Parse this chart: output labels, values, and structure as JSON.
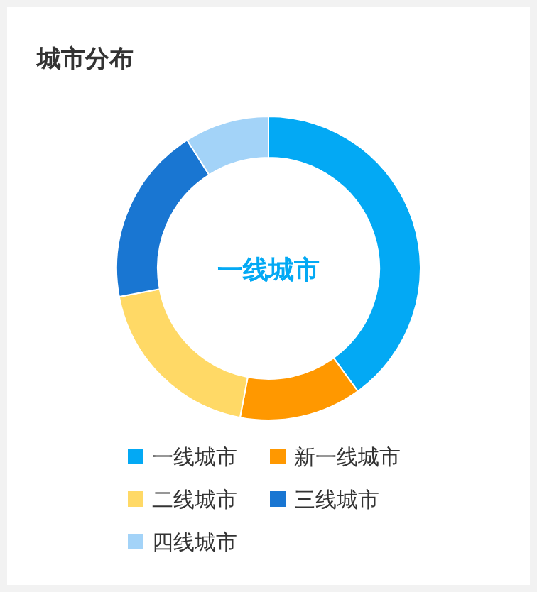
{
  "chart_data": {
    "type": "donut",
    "title": "城市分布",
    "categories": [
      "一线城市",
      "新一线城市",
      "二线城市",
      "三线城市",
      "四线城市"
    ],
    "values": [
      40,
      13,
      19,
      19,
      9
    ],
    "colors": [
      "#03a9f4",
      "#ff9800",
      "#ffd966",
      "#1976d2",
      "#a3d3f8"
    ],
    "annotations": [
      "一线城市"
    ],
    "legend": "bottom"
  }
}
